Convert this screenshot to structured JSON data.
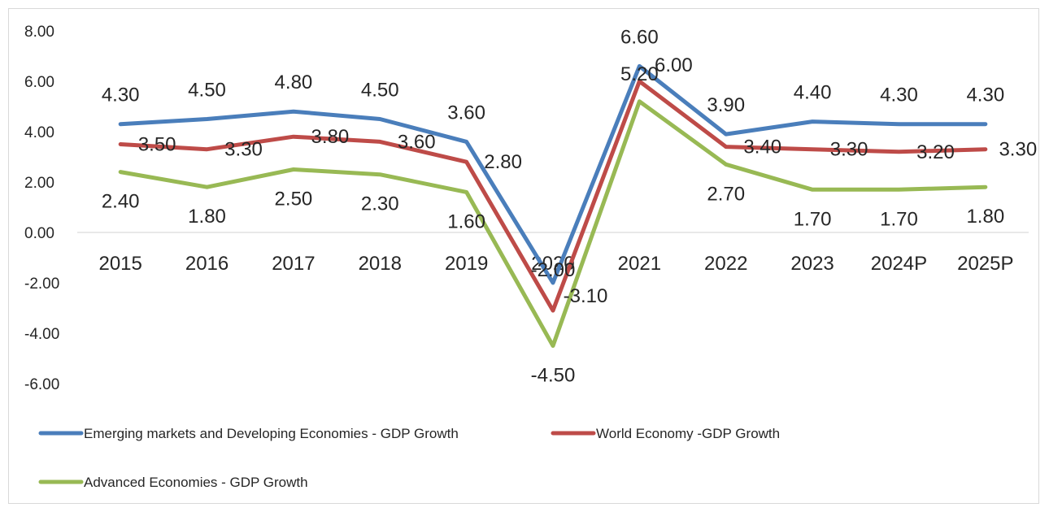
{
  "chart_data": {
    "type": "line",
    "title": "",
    "xlabel": "",
    "ylabel": "",
    "ylim": [
      -6,
      8
    ],
    "y_ticks": [
      "8.00",
      "6.00",
      "4.00",
      "2.00",
      "0.00",
      "-2.00",
      "-4.00",
      "-6.00"
    ],
    "categories": [
      "2015",
      "2016",
      "2017",
      "2018",
      "2019",
      "2020",
      "2021",
      "2022",
      "2023",
      "2024P",
      "2025P"
    ],
    "grid": false,
    "legend_position": "bottom",
    "series": [
      {
        "name": "Emerging markets and Developing Economies - GDP Growth",
        "color": "#4a7ebb",
        "values": [
          4.3,
          4.5,
          4.8,
          4.5,
          3.6,
          -2.0,
          6.6,
          3.9,
          4.4,
          4.3,
          4.3
        ],
        "labels": [
          "4.30",
          "4.50",
          "4.80",
          "4.50",
          "3.60",
          "-2.00",
          "6.60",
          "3.90",
          "4.40",
          "4.30",
          "4.30"
        ]
      },
      {
        "name": "World Economy -GDP Growth",
        "color": "#be4b48",
        "values": [
          3.5,
          3.3,
          3.8,
          3.6,
          2.8,
          -3.1,
          6.0,
          3.4,
          3.3,
          3.2,
          3.3
        ],
        "labels": [
          "3.50",
          "3.30",
          "3.80",
          "3.60",
          "2.80",
          "-3.10",
          "6.00",
          "3.40",
          "3.30",
          "3.20",
          "3.30"
        ]
      },
      {
        "name": "Advanced Economies - GDP Growth",
        "color": "#98b954",
        "values": [
          2.4,
          1.8,
          2.5,
          2.3,
          1.6,
          -4.5,
          5.2,
          2.7,
          1.7,
          1.7,
          1.8
        ],
        "labels": [
          "2.40",
          "1.80",
          "2.50",
          "2.30",
          "1.60",
          "-4.50",
          "5.20",
          "2.70",
          "1.70",
          "1.70",
          "1.80"
        ]
      }
    ]
  }
}
